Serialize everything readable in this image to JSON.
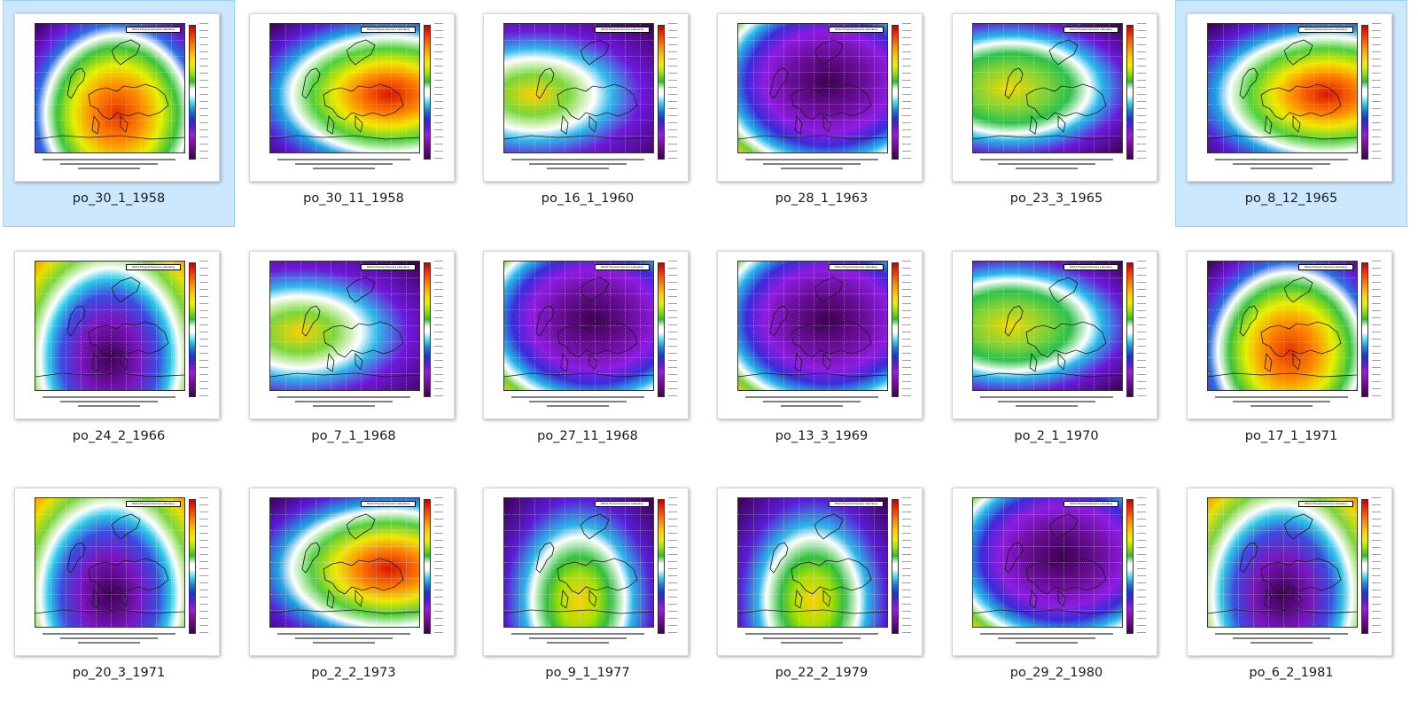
{
  "files": [
    {
      "name": "po_30_1_1958",
      "selected": true,
      "style": "warm-south"
    },
    {
      "name": "po_30_11_1958",
      "selected": false,
      "style": "warm-east"
    },
    {
      "name": "po_16_1_1960",
      "selected": false,
      "style": "cold-east"
    },
    {
      "name": "po_28_1_1963",
      "selected": false,
      "style": "cold-all"
    },
    {
      "name": "po_23_3_1965",
      "selected": false,
      "style": "green-west"
    },
    {
      "name": "po_8_12_1965",
      "selected": true,
      "style": "warm-east"
    },
    {
      "name": "po_24_2_1966",
      "selected": false,
      "style": "cold-south"
    },
    {
      "name": "po_7_1_1968",
      "selected": false,
      "style": "cold-east"
    },
    {
      "name": "po_27_11_1968",
      "selected": false,
      "style": "cold-all"
    },
    {
      "name": "po_13_3_1969",
      "selected": false,
      "style": "cold-all"
    },
    {
      "name": "po_2_1_1970",
      "selected": false,
      "style": "green-west"
    },
    {
      "name": "po_17_1_1971",
      "selected": false,
      "style": "warm-south"
    },
    {
      "name": "po_20_3_1971",
      "selected": false,
      "style": "cold-south"
    },
    {
      "name": "po_2_2_1973",
      "selected": false,
      "style": "warm-east"
    },
    {
      "name": "po_9_1_1977",
      "selected": false,
      "style": "green-south"
    },
    {
      "name": "po_22_2_1979",
      "selected": false,
      "style": "green-south"
    },
    {
      "name": "po_29_2_1980",
      "selected": false,
      "style": "cold-all"
    },
    {
      "name": "po_6_2_1981",
      "selected": false,
      "style": "cold-south"
    }
  ],
  "map_credit": "NOAA Physical Sciences Laboratory",
  "colors": {
    "selection_bg": "#cce8ff",
    "selection_border": "#99d1ff"
  }
}
